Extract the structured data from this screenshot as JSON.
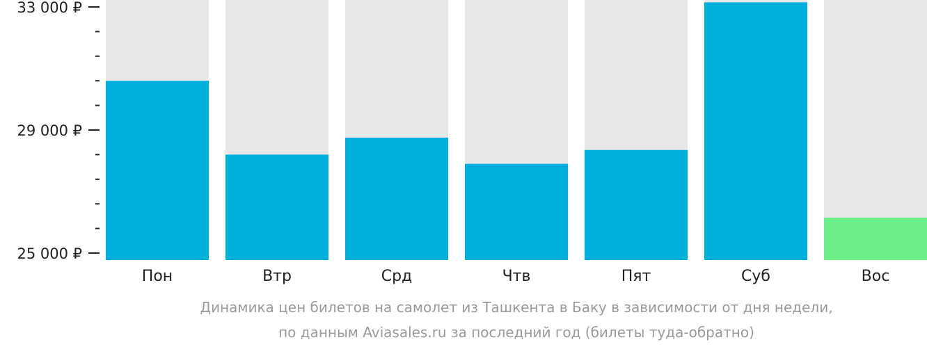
{
  "chart_data": {
    "type": "bar",
    "categories": [
      "Пон",
      "Втр",
      "Срд",
      "Чтв",
      "Пят",
      "Суб",
      "Вос"
    ],
    "values": [
      30600,
      28200,
      28750,
      27900,
      28350,
      33150,
      26150
    ],
    "ylim": [
      25000,
      33500
    ],
    "yticks": [
      {
        "value": 33000,
        "label": "33 000 ₽"
      },
      {
        "value": 29000,
        "label": "29 000 ₽"
      },
      {
        "value": 25000,
        "label": "25 000 ₽"
      }
    ],
    "minor_tick_step": 800,
    "colors": {
      "bar": "#00b0dc",
      "lowest_bar": "#6cee88",
      "background_column": "#e8e8e8",
      "axis": "#222222"
    },
    "highlight_index": 6
  },
  "caption": {
    "line1": "Динамика цен билетов на самолет из Ташкента в Баку в зависимости от дня недели,",
    "line2": "по данным Aviasales.ru за последний год (билеты туда-обратно)"
  }
}
